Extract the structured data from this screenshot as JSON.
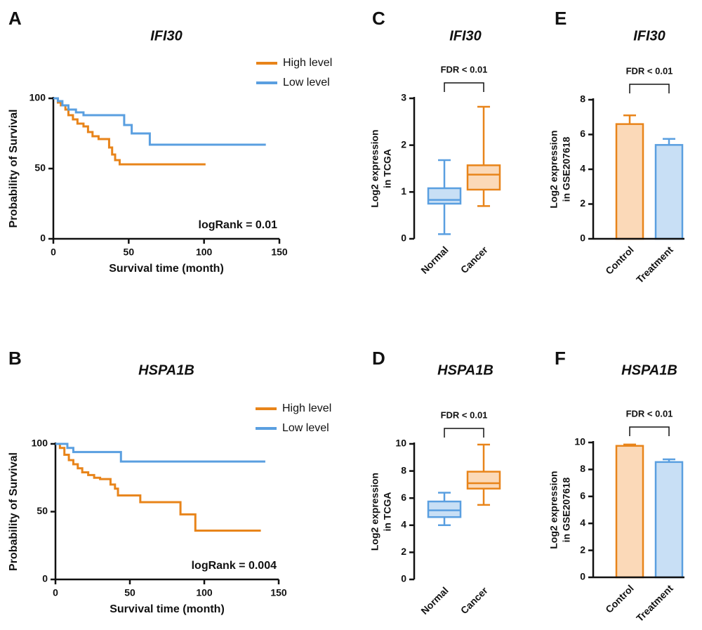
{
  "chart_data": [
    {
      "type": "km",
      "panel": "A",
      "title": "IFI30",
      "xlabel": "Survival time (month)",
      "ylabel": "Probability of Survival",
      "xlim": [
        0,
        150
      ],
      "xticks": [
        0,
        50,
        100,
        150
      ],
      "ylim": [
        0,
        100
      ],
      "yticks": [
        0,
        50,
        100
      ],
      "annotation": "logRank = 0.01",
      "series": [
        {
          "name": "High level",
          "color": "#e8841a",
          "x": [
            0,
            3,
            3,
            5,
            5,
            8,
            8,
            10,
            10,
            13,
            13,
            16,
            16,
            20,
            20,
            23,
            23,
            26,
            26,
            30,
            30,
            37,
            37,
            39,
            39,
            41,
            41,
            44,
            44,
            101
          ],
          "values": [
            100,
            100,
            97,
            97,
            95,
            95,
            92,
            92,
            88,
            88,
            85,
            85,
            82,
            82,
            80,
            80,
            76,
            76,
            73,
            73,
            71,
            71,
            65,
            65,
            60,
            60,
            56,
            56,
            53,
            53
          ]
        },
        {
          "name": "Low level",
          "color": "#5a9fe0",
          "x": [
            0,
            3,
            3,
            6,
            6,
            10,
            10,
            15,
            15,
            20,
            20,
            47,
            47,
            52,
            52,
            64,
            64,
            141
          ],
          "values": [
            100,
            100,
            98,
            98,
            95,
            95,
            92,
            92,
            90,
            90,
            88,
            88,
            81,
            81,
            75,
            75,
            67,
            67
          ]
        }
      ]
    },
    {
      "type": "km",
      "panel": "B",
      "title": "HSPA1B",
      "xlabel": "Survival time (month)",
      "ylabel": "Probability of Survival",
      "xlim": [
        0,
        150
      ],
      "xticks": [
        0,
        50,
        100,
        150
      ],
      "ylim": [
        0,
        100
      ],
      "yticks": [
        0,
        50,
        100
      ],
      "annotation": "logRank = 0.004",
      "series": [
        {
          "name": "High level",
          "color": "#e8841a",
          "x": [
            0,
            3,
            3,
            6,
            6,
            9,
            9,
            12,
            12,
            15,
            15,
            18,
            18,
            22,
            22,
            26,
            26,
            30,
            30,
            37,
            37,
            40,
            40,
            42,
            42,
            57,
            57,
            84,
            84,
            94,
            94,
            138
          ],
          "values": [
            100,
            100,
            97,
            97,
            92,
            92,
            88,
            88,
            85,
            85,
            82,
            82,
            79,
            79,
            77,
            77,
            75,
            75,
            74,
            74,
            70,
            70,
            67,
            67,
            62,
            62,
            57,
            57,
            48,
            48,
            36,
            36
          ]
        },
        {
          "name": "Low level",
          "color": "#5a9fe0",
          "x": [
            0,
            8,
            8,
            12,
            12,
            44,
            44,
            141
          ],
          "values": [
            100,
            100,
            97,
            97,
            94,
            94,
            87,
            87
          ]
        }
      ]
    },
    {
      "type": "box",
      "panel": "C",
      "title": "IFI30",
      "ylabel": [
        "Log2 expression",
        "in TCGA"
      ],
      "annotation": "FDR < 0.01",
      "ylim": [
        0,
        3
      ],
      "yticks": [
        0,
        1,
        2,
        3
      ],
      "categories": [
        "Normal",
        "Cancer"
      ],
      "colors": [
        "#5a9fe0",
        "#e8841a"
      ],
      "fills": [
        "#c8dff5",
        "#fbd9b8"
      ],
      "boxes": [
        {
          "min": 0.1,
          "q1": 0.75,
          "median": 0.83,
          "q3": 1.08,
          "max": 1.68
        },
        {
          "min": 0.7,
          "q1": 1.05,
          "median": 1.37,
          "q3": 1.57,
          "max": 2.82
        }
      ]
    },
    {
      "type": "box",
      "panel": "D",
      "title": "HSPA1B",
      "ylabel": [
        "Log2 expression",
        "in TCGA"
      ],
      "annotation": "FDR < 0.01",
      "ylim": [
        0,
        10
      ],
      "yticks": [
        0,
        2,
        4,
        6,
        8,
        10
      ],
      "categories": [
        "Normal",
        "Cancer"
      ],
      "colors": [
        "#5a9fe0",
        "#e8841a"
      ],
      "fills": [
        "#c8dff5",
        "#fbd9b8"
      ],
      "boxes": [
        {
          "min": 4.0,
          "q1": 4.6,
          "median": 5.1,
          "q3": 5.75,
          "max": 6.4
        },
        {
          "min": 5.5,
          "q1": 6.7,
          "median": 7.1,
          "q3": 7.95,
          "max": 9.95
        }
      ]
    },
    {
      "type": "bar",
      "panel": "E",
      "title": "IFI30",
      "ylabel": [
        "Log2 expression",
        "in GSE207618"
      ],
      "annotation": "FDR < 0.01",
      "ylim": [
        0,
        8
      ],
      "yticks": [
        0,
        2,
        4,
        6,
        8
      ],
      "categories": [
        "Control",
        "Treatment"
      ],
      "colors": [
        "#e8841a",
        "#5a9fe0"
      ],
      "fills": [
        "#fbd9b8",
        "#c8dff5"
      ],
      "values": [
        6.6,
        5.4
      ],
      "errors": [
        0.5,
        0.35
      ]
    },
    {
      "type": "bar",
      "panel": "F",
      "title": "HSPA1B",
      "ylabel": [
        "Log2 expression",
        "in GSE207618"
      ],
      "annotation": "FDR < 0.01",
      "ylim": [
        0,
        10
      ],
      "yticks": [
        0,
        2,
        4,
        6,
        8,
        10
      ],
      "categories": [
        "Control",
        "Treatment"
      ],
      "colors": [
        "#e8841a",
        "#5a9fe0"
      ],
      "fills": [
        "#fbd9b8",
        "#c8dff5"
      ],
      "values": [
        9.75,
        8.55
      ],
      "errors": [
        0.1,
        0.2
      ]
    }
  ]
}
